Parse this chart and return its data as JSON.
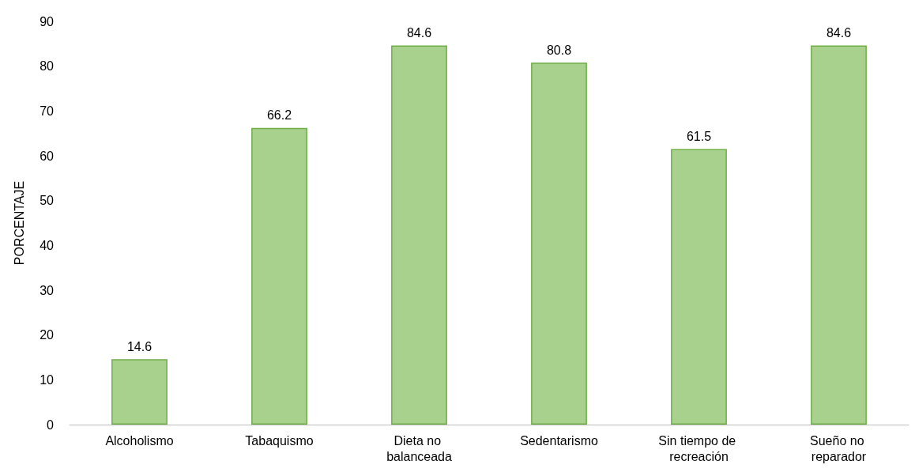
{
  "chart_data": {
    "type": "bar",
    "ylabel": "PORCENTAJE",
    "categories": [
      "Alcoholismo",
      "Tabaquismo",
      "Dieta no balanceada",
      "Sedentarismo",
      "Sin tiempo de recreación",
      "Sueño no reparador"
    ],
    "values": [
      14.6,
      66.2,
      84.6,
      80.8,
      61.5,
      84.6
    ],
    "color": "#a9d18e",
    "ylim": [
      0,
      90
    ],
    "yticks": [
      0,
      10,
      20,
      30,
      40,
      50,
      60,
      70,
      80,
      90
    ],
    "grid": false,
    "data_labels": true
  }
}
